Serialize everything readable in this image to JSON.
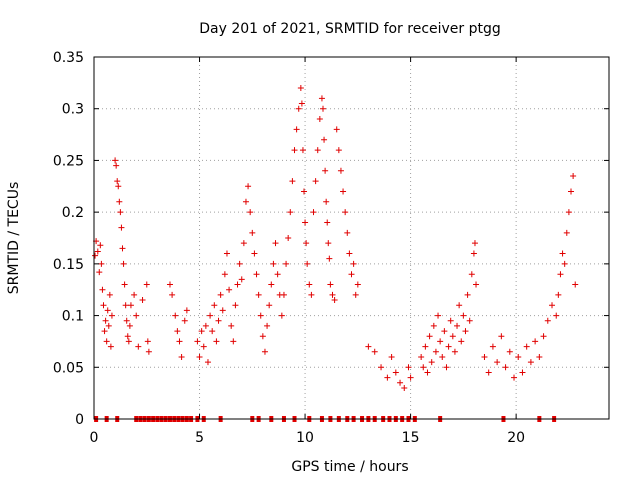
{
  "chart_data": {
    "type": "scatter",
    "title": "Day 201 of 2021, SRMTID for receiver ptgg",
    "xlabel": "GPS time / hours",
    "ylabel": "SRMTID / TECUs",
    "xlim": [
      0,
      24.4
    ],
    "ylim": [
      0,
      0.35
    ],
    "grid": true,
    "marker": "+",
    "color": "#e00000",
    "x_ticks": [
      0,
      5,
      10,
      15,
      20
    ],
    "x_tick_labels": [
      "0",
      "5",
      "10",
      "15",
      "20"
    ],
    "y_ticks": [
      0,
      0.05,
      0.1,
      0.15,
      0.2,
      0.25,
      0.3,
      0.35
    ],
    "y_tick_labels": [
      "0",
      "0.05",
      "0.1",
      "0.15",
      "0.2",
      "0.25",
      "0.3",
      "0.35"
    ],
    "zero_points": [
      0.1,
      0.6,
      1.1,
      2.0,
      2.2,
      2.4,
      2.6,
      2.8,
      3.0,
      3.2,
      3.4,
      3.6,
      3.8,
      4.0,
      4.2,
      4.4,
      4.6,
      4.9,
      5.2,
      6.0,
      7.5,
      7.8,
      8.4,
      9.0,
      9.5,
      10.2,
      10.8,
      11.2,
      11.6,
      12.0,
      12.3,
      12.7,
      13.0,
      13.3,
      13.7,
      14.0,
      14.3,
      14.6,
      14.9,
      15.2,
      16.4,
      19.4,
      21.1,
      21.8
    ],
    "points": [
      [
        0.05,
        0.158
      ],
      [
        0.1,
        0.172
      ],
      [
        0.18,
        0.162
      ],
      [
        0.25,
        0.142
      ],
      [
        0.3,
        0.168
      ],
      [
        0.35,
        0.15
      ],
      [
        0.4,
        0.125
      ],
      [
        0.45,
        0.11
      ],
      [
        0.5,
        0.085
      ],
      [
        0.55,
        0.095
      ],
      [
        0.6,
        0.075
      ],
      [
        0.65,
        0.105
      ],
      [
        0.7,
        0.09
      ],
      [
        0.75,
        0.12
      ],
      [
        0.8,
        0.07
      ],
      [
        0.85,
        0.1
      ],
      [
        1.0,
        0.25
      ],
      [
        1.05,
        0.245
      ],
      [
        1.1,
        0.23
      ],
      [
        1.15,
        0.225
      ],
      [
        1.2,
        0.21
      ],
      [
        1.25,
        0.2
      ],
      [
        1.3,
        0.185
      ],
      [
        1.35,
        0.165
      ],
      [
        1.4,
        0.15
      ],
      [
        1.45,
        0.13
      ],
      [
        1.5,
        0.11
      ],
      [
        1.55,
        0.095
      ],
      [
        1.6,
        0.08
      ],
      [
        1.65,
        0.075
      ],
      [
        1.7,
        0.09
      ],
      [
        1.75,
        0.11
      ],
      [
        1.9,
        0.12
      ],
      [
        2.0,
        0.1
      ],
      [
        2.1,
        0.07
      ],
      [
        2.3,
        0.115
      ],
      [
        2.5,
        0.13
      ],
      [
        2.55,
        0.075
      ],
      [
        2.6,
        0.065
      ],
      [
        3.6,
        0.13
      ],
      [
        3.7,
        0.12
      ],
      [
        3.85,
        0.1
      ],
      [
        3.95,
        0.085
      ],
      [
        4.05,
        0.075
      ],
      [
        4.15,
        0.06
      ],
      [
        4.3,
        0.095
      ],
      [
        4.4,
        0.105
      ],
      [
        4.9,
        0.075
      ],
      [
        5.0,
        0.06
      ],
      [
        5.1,
        0.085
      ],
      [
        5.2,
        0.07
      ],
      [
        5.3,
        0.09
      ],
      [
        5.4,
        0.055
      ],
      [
        5.5,
        0.1
      ],
      [
        5.6,
        0.085
      ],
      [
        5.7,
        0.11
      ],
      [
        5.8,
        0.075
      ],
      [
        5.9,
        0.095
      ],
      [
        6.0,
        0.12
      ],
      [
        6.1,
        0.105
      ],
      [
        6.2,
        0.14
      ],
      [
        6.3,
        0.16
      ],
      [
        6.4,
        0.125
      ],
      [
        6.5,
        0.09
      ],
      [
        6.6,
        0.075
      ],
      [
        6.7,
        0.11
      ],
      [
        6.8,
        0.13
      ],
      [
        6.9,
        0.15
      ],
      [
        7.0,
        0.135
      ],
      [
        7.1,
        0.17
      ],
      [
        7.2,
        0.21
      ],
      [
        7.3,
        0.225
      ],
      [
        7.4,
        0.2
      ],
      [
        7.5,
        0.18
      ],
      [
        7.6,
        0.16
      ],
      [
        7.7,
        0.14
      ],
      [
        7.8,
        0.12
      ],
      [
        7.9,
        0.1
      ],
      [
        8.0,
        0.08
      ],
      [
        8.1,
        0.065
      ],
      [
        8.2,
        0.09
      ],
      [
        8.3,
        0.11
      ],
      [
        8.4,
        0.13
      ],
      [
        8.5,
        0.15
      ],
      [
        8.6,
        0.17
      ],
      [
        8.7,
        0.14
      ],
      [
        8.8,
        0.12
      ],
      [
        8.9,
        0.1
      ],
      [
        9.0,
        0.12
      ],
      [
        9.1,
        0.15
      ],
      [
        9.2,
        0.175
      ],
      [
        9.3,
        0.2
      ],
      [
        9.4,
        0.23
      ],
      [
        9.5,
        0.26
      ],
      [
        9.6,
        0.28
      ],
      [
        9.7,
        0.3
      ],
      [
        9.8,
        0.32
      ],
      [
        9.85,
        0.305
      ],
      [
        9.9,
        0.26
      ],
      [
        9.95,
        0.22
      ],
      [
        10.0,
        0.19
      ],
      [
        10.05,
        0.17
      ],
      [
        10.1,
        0.15
      ],
      [
        10.2,
        0.13
      ],
      [
        10.3,
        0.12
      ],
      [
        10.4,
        0.2
      ],
      [
        10.5,
        0.23
      ],
      [
        10.6,
        0.26
      ],
      [
        10.7,
        0.29
      ],
      [
        10.8,
        0.31
      ],
      [
        10.85,
        0.3
      ],
      [
        10.9,
        0.27
      ],
      [
        10.95,
        0.24
      ],
      [
        11.0,
        0.21
      ],
      [
        11.05,
        0.19
      ],
      [
        11.1,
        0.17
      ],
      [
        11.15,
        0.155
      ],
      [
        11.2,
        0.13
      ],
      [
        11.3,
        0.12
      ],
      [
        11.4,
        0.115
      ],
      [
        11.5,
        0.28
      ],
      [
        11.6,
        0.26
      ],
      [
        11.7,
        0.24
      ],
      [
        11.8,
        0.22
      ],
      [
        11.9,
        0.2
      ],
      [
        12.0,
        0.18
      ],
      [
        12.1,
        0.16
      ],
      [
        12.2,
        0.14
      ],
      [
        12.3,
        0.15
      ],
      [
        12.4,
        0.12
      ],
      [
        12.5,
        0.13
      ],
      [
        13.0,
        0.07
      ],
      [
        13.3,
        0.065
      ],
      [
        13.6,
        0.05
      ],
      [
        13.9,
        0.04
      ],
      [
        14.1,
        0.06
      ],
      [
        14.3,
        0.045
      ],
      [
        14.5,
        0.035
      ],
      [
        14.7,
        0.03
      ],
      [
        14.9,
        0.05
      ],
      [
        15.0,
        0.04
      ],
      [
        15.5,
        0.06
      ],
      [
        15.6,
        0.05
      ],
      [
        15.7,
        0.07
      ],
      [
        15.8,
        0.045
      ],
      [
        15.9,
        0.08
      ],
      [
        16.0,
        0.055
      ],
      [
        16.1,
        0.09
      ],
      [
        16.2,
        0.065
      ],
      [
        16.3,
        0.1
      ],
      [
        16.4,
        0.075
      ],
      [
        16.5,
        0.06
      ],
      [
        16.6,
        0.085
      ],
      [
        16.7,
        0.05
      ],
      [
        16.8,
        0.07
      ],
      [
        16.9,
        0.095
      ],
      [
        17.0,
        0.08
      ],
      [
        17.1,
        0.065
      ],
      [
        17.2,
        0.09
      ],
      [
        17.3,
        0.11
      ],
      [
        17.4,
        0.075
      ],
      [
        17.5,
        0.1
      ],
      [
        17.6,
        0.085
      ],
      [
        17.7,
        0.12
      ],
      [
        17.8,
        0.095
      ],
      [
        17.9,
        0.14
      ],
      [
        18.0,
        0.16
      ],
      [
        18.05,
        0.17
      ],
      [
        18.1,
        0.13
      ],
      [
        18.5,
        0.06
      ],
      [
        18.7,
        0.045
      ],
      [
        18.9,
        0.07
      ],
      [
        19.1,
        0.055
      ],
      [
        19.3,
        0.08
      ],
      [
        19.5,
        0.05
      ],
      [
        19.7,
        0.065
      ],
      [
        19.9,
        0.04
      ],
      [
        20.1,
        0.06
      ],
      [
        20.3,
        0.045
      ],
      [
        20.5,
        0.07
      ],
      [
        20.7,
        0.055
      ],
      [
        20.9,
        0.075
      ],
      [
        21.1,
        0.06
      ],
      [
        21.3,
        0.08
      ],
      [
        21.5,
        0.095
      ],
      [
        21.7,
        0.11
      ],
      [
        21.9,
        0.1
      ],
      [
        22.0,
        0.12
      ],
      [
        22.1,
        0.14
      ],
      [
        22.2,
        0.16
      ],
      [
        22.3,
        0.15
      ],
      [
        22.4,
        0.18
      ],
      [
        22.5,
        0.2
      ],
      [
        22.6,
        0.22
      ],
      [
        22.7,
        0.235
      ],
      [
        22.8,
        0.13
      ]
    ]
  }
}
